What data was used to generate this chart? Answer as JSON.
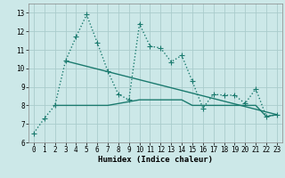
{
  "title": "",
  "xlabel": "Humidex (Indice chaleur)",
  "ylabel": "",
  "bg_color": "#cce8e8",
  "grid_color": "#aacccc",
  "line_color": "#1a7a6e",
  "xlim": [
    -0.5,
    23.5
  ],
  "ylim": [
    6,
    13.5
  ],
  "yticks": [
    6,
    7,
    8,
    9,
    10,
    11,
    12,
    13
  ],
  "xticks": [
    0,
    1,
    2,
    3,
    4,
    5,
    6,
    7,
    8,
    9,
    10,
    11,
    12,
    13,
    14,
    15,
    16,
    17,
    18,
    19,
    20,
    21,
    22,
    23
  ],
  "line1_x": [
    0,
    1,
    2,
    3,
    4,
    5,
    6,
    7,
    8,
    9,
    10,
    11,
    12,
    13,
    14,
    15,
    16,
    17,
    18,
    19,
    20,
    21,
    22,
    23
  ],
  "line1_y": [
    6.5,
    7.3,
    8.0,
    10.4,
    11.7,
    12.9,
    11.4,
    9.85,
    8.6,
    8.3,
    12.4,
    11.2,
    11.1,
    10.35,
    10.7,
    9.3,
    7.85,
    8.6,
    8.55,
    8.55,
    8.1,
    8.9,
    7.4,
    7.5
  ],
  "line2_x": [
    2,
    3,
    4,
    5,
    6,
    7,
    8,
    9,
    10,
    11,
    12,
    13,
    14,
    15,
    16,
    17,
    18,
    19,
    20,
    21,
    22,
    23
  ],
  "line2_y": [
    8.0,
    8.0,
    8.0,
    8.0,
    8.0,
    8.0,
    8.1,
    8.2,
    8.3,
    8.3,
    8.3,
    8.3,
    8.3,
    8.0,
    8.0,
    8.0,
    8.0,
    8.0,
    8.0,
    8.0,
    7.4,
    7.5
  ],
  "line3_x": [
    3,
    23
  ],
  "line3_y": [
    10.4,
    7.5
  ],
  "marker": "+",
  "markersize": 4,
  "linewidth": 1.0
}
